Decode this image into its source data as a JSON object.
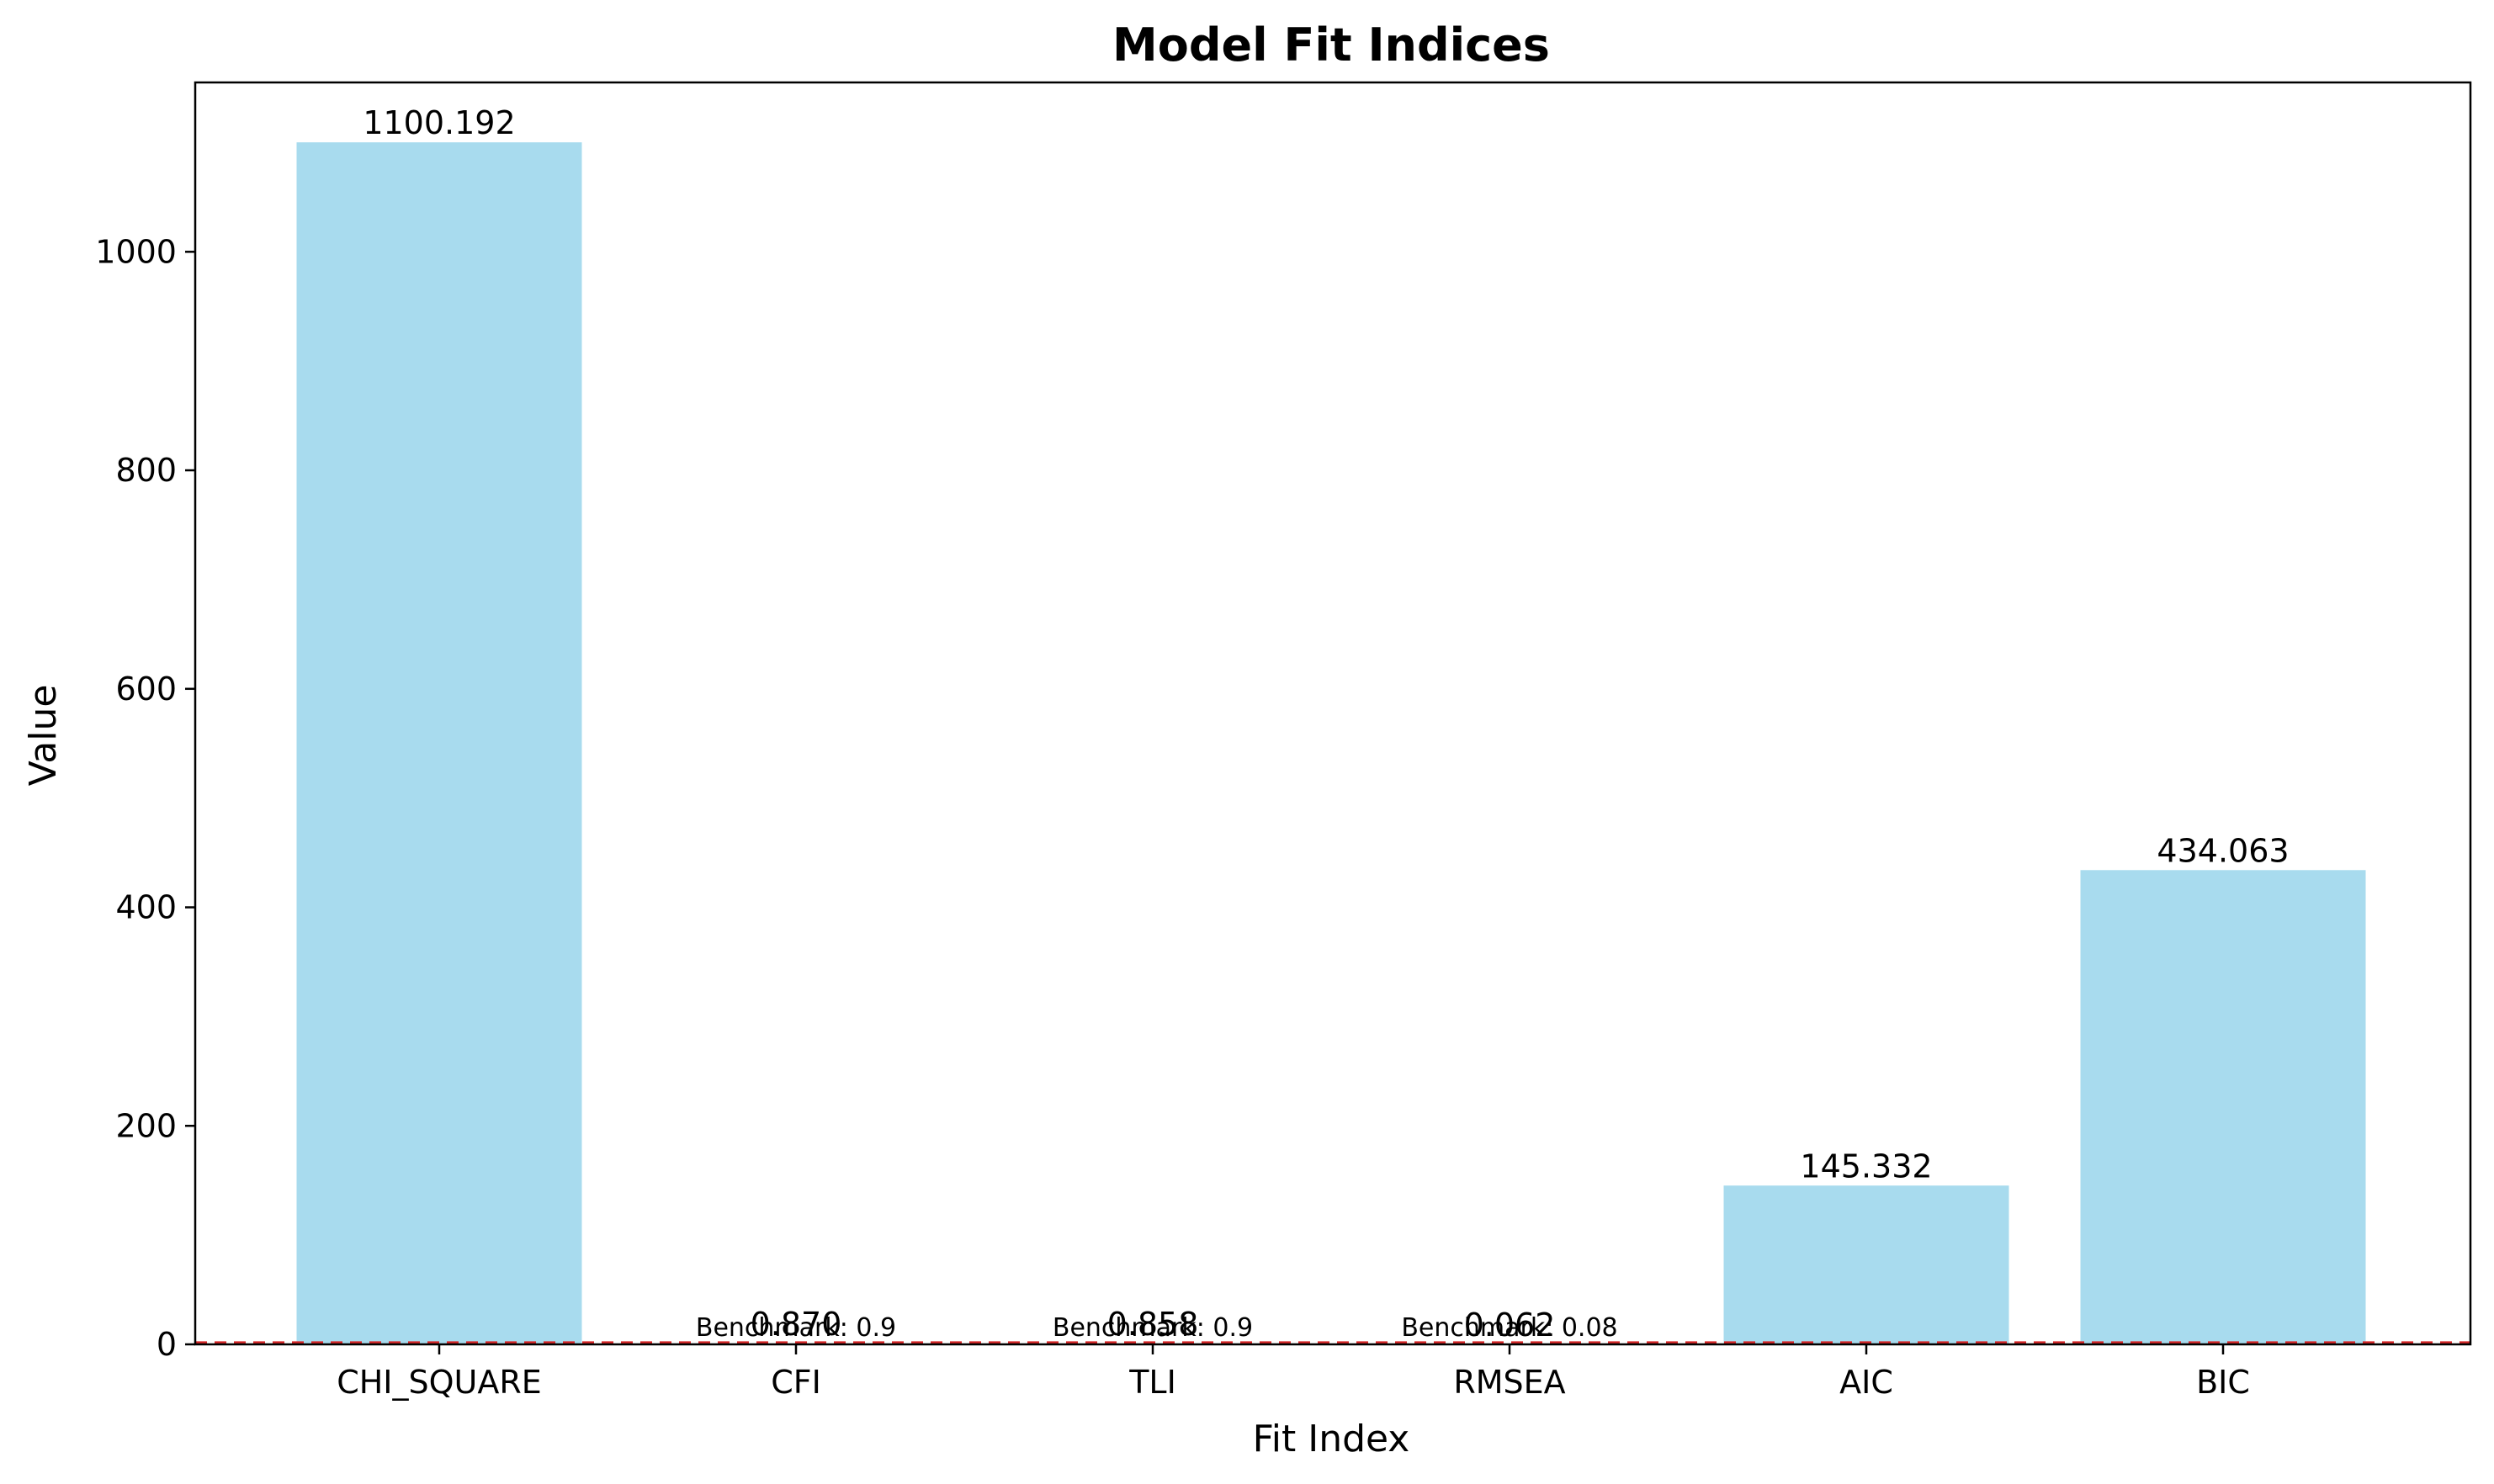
{
  "chart_data": {
    "type": "bar",
    "title": "Model Fit Indices",
    "xlabel": "Fit Index",
    "ylabel": "Value",
    "categories": [
      "CHI_SQUARE",
      "CFI",
      "TLI",
      "RMSEA",
      "AIC",
      "BIC"
    ],
    "values": [
      1100.192,
      0.87,
      0.858,
      0.062,
      145.332,
      434.063
    ],
    "value_labels": [
      "1100.192",
      "0.870",
      "0.858",
      "0.062",
      "145.332",
      "434.063"
    ],
    "ylim": [
      0,
      1155
    ],
    "yticks": [
      0,
      200,
      400,
      600,
      800,
      1000
    ],
    "grid": false,
    "bar_color": "#a8dbee",
    "benchmarks": [
      {
        "category": "CFI",
        "value": 0.9,
        "label": "Benchmark: 0.9"
      },
      {
        "category": "TLI",
        "value": 0.9,
        "label": "Benchmark: 0.9"
      },
      {
        "category": "RMSEA",
        "value": 0.08,
        "label": "Benchmark: 0.08"
      }
    ],
    "benchmark_line_color": "#d62728"
  }
}
